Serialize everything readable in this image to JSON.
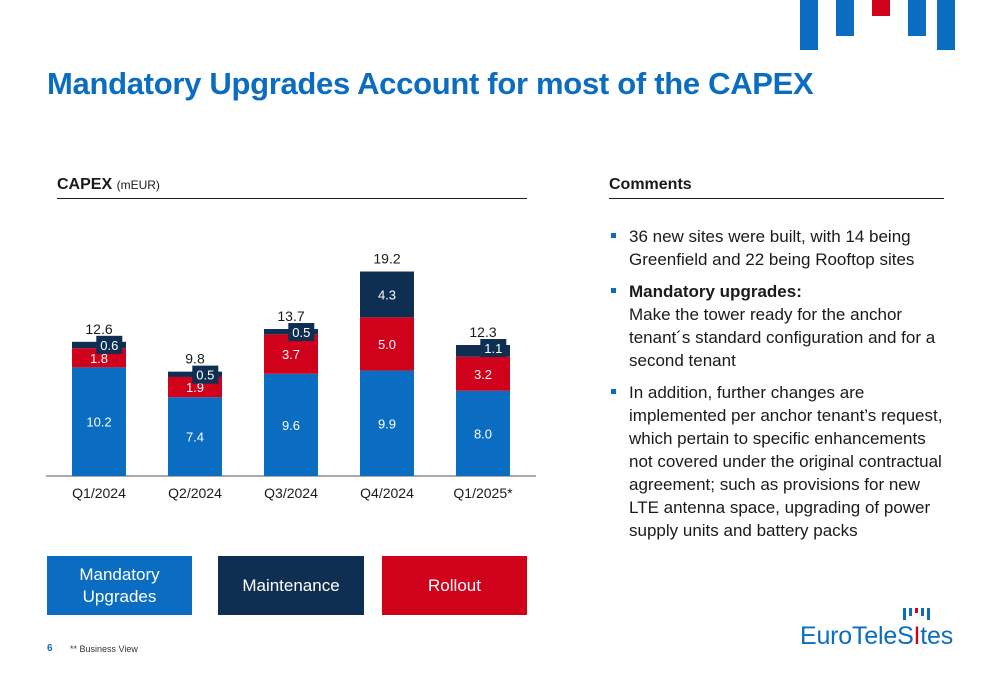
{
  "title": "Mandatory Upgrades Account for most of the CAPEX",
  "chart_section": {
    "label": "CAPEX",
    "unit": "(mEUR)"
  },
  "comments_section": {
    "label": "Comments"
  },
  "chart_data": {
    "type": "bar",
    "stacked": true,
    "categories": [
      "Q1/2024",
      "Q2/2024",
      "Q3/2024",
      "Q4/2024",
      "Q1/2025*"
    ],
    "series": [
      {
        "name": "Mandatory Upgrades",
        "color": "#0a6dc2",
        "values": [
          10.2,
          7.4,
          9.6,
          9.9,
          8.0
        ]
      },
      {
        "name": "Rollout",
        "color": "#d0021b",
        "values": [
          1.8,
          1.9,
          3.7,
          5.0,
          3.2
        ]
      },
      {
        "name": "Maintenance",
        "color": "#0e2f52",
        "values": [
          0.6,
          0.5,
          0.5,
          4.3,
          1.1
        ]
      }
    ],
    "value_labels": {
      "Mandatory Upgrades": [
        "10.2",
        "7.4",
        "9.6",
        "9.9",
        "8.0"
      ],
      "Rollout": [
        "1.8",
        "1.9",
        "3.7",
        "5.0",
        "3.2"
      ],
      "Maintenance": [
        "0.6",
        "0.5",
        "0.5",
        "4.3",
        "1.1"
      ]
    },
    "totals": [
      12.6,
      9.8,
      13.7,
      19.2,
      12.3
    ],
    "total_labels": [
      "12.6",
      "9.8",
      "13.7",
      "19.2",
      "12.3"
    ],
    "ylim": [
      0,
      20
    ],
    "grid": false,
    "legend_placement": "bottom"
  },
  "legend": [
    {
      "label": "Mandatory Upgrades",
      "color": "#0a6dc2"
    },
    {
      "label": "Maintenance",
      "color": "#0e2f52"
    },
    {
      "label": "Rollout",
      "color": "#d0021b"
    }
  ],
  "comments": {
    "item1": "36 new sites were built, with 14 being Greenfield and 22 being Rooftop sites",
    "item2_title": "Mandatory upgrades:",
    "item2_body": "Make the tower ready for the anchor tenant´s standard configuration and for a second tenant",
    "item3": "In addition, further changes are implemented per anchor tenant’s request, which pertain to specific enhancements not covered under the original contractual agreement; such as provisions for new LTE antenna space, upgrading of power supply units and battery packs"
  },
  "footer": {
    "page_number": "6",
    "footnote": "** Business View"
  },
  "brand": {
    "name_part1": "EuroTeleS",
    "name_highlight": "I",
    "name_part2": "tes",
    "primary_color": "#0a6dc2",
    "accent_color": "#d0021b"
  }
}
